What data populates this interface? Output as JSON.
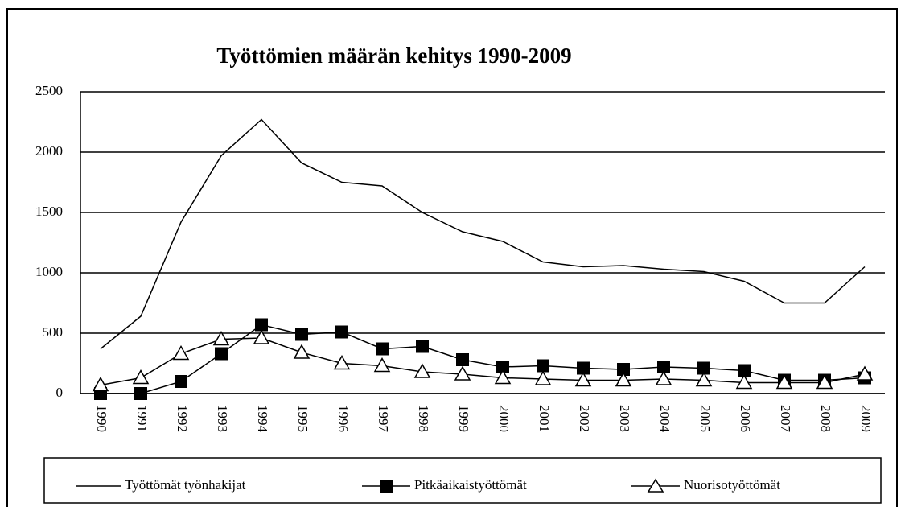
{
  "chart_data": {
    "type": "line",
    "title": "Työttömien määrän kehitys 1990-2009",
    "categories": [
      "1990",
      "1991",
      "1992",
      "1993",
      "1994",
      "1995",
      "1996",
      "1997",
      "1998",
      "1999",
      "2000",
      "2001",
      "2002",
      "2003",
      "2004",
      "2005",
      "2006",
      "2007",
      "2008",
      "2009"
    ],
    "series": [
      {
        "name": "Työttömät työnhakijat",
        "color": "#000000",
        "marker": "none",
        "values": [
          370,
          640,
          1420,
          1970,
          2270,
          1910,
          1750,
          1720,
          1500,
          1340,
          1260,
          1090,
          1050,
          1060,
          1030,
          1010,
          930,
          750,
          750,
          1050
        ]
      },
      {
        "name": "Pitkäaikaistyöttömät",
        "color": "#000000",
        "marker": "square",
        "values": [
          0,
          0,
          100,
          330,
          570,
          490,
          510,
          370,
          390,
          280,
          220,
          230,
          210,
          200,
          220,
          210,
          190,
          110,
          110,
          130
        ]
      },
      {
        "name": "Nuorisotyöttömät",
        "color": "#000000",
        "marker": "triangle",
        "values": [
          70,
          130,
          330,
          450,
          460,
          340,
          250,
          230,
          180,
          160,
          130,
          120,
          110,
          110,
          120,
          110,
          90,
          90,
          90,
          160
        ]
      }
    ],
    "ylim": [
      0,
      2500
    ],
    "yticks": [
      0,
      500,
      1000,
      1500,
      2000,
      2500
    ],
    "grid": true
  }
}
